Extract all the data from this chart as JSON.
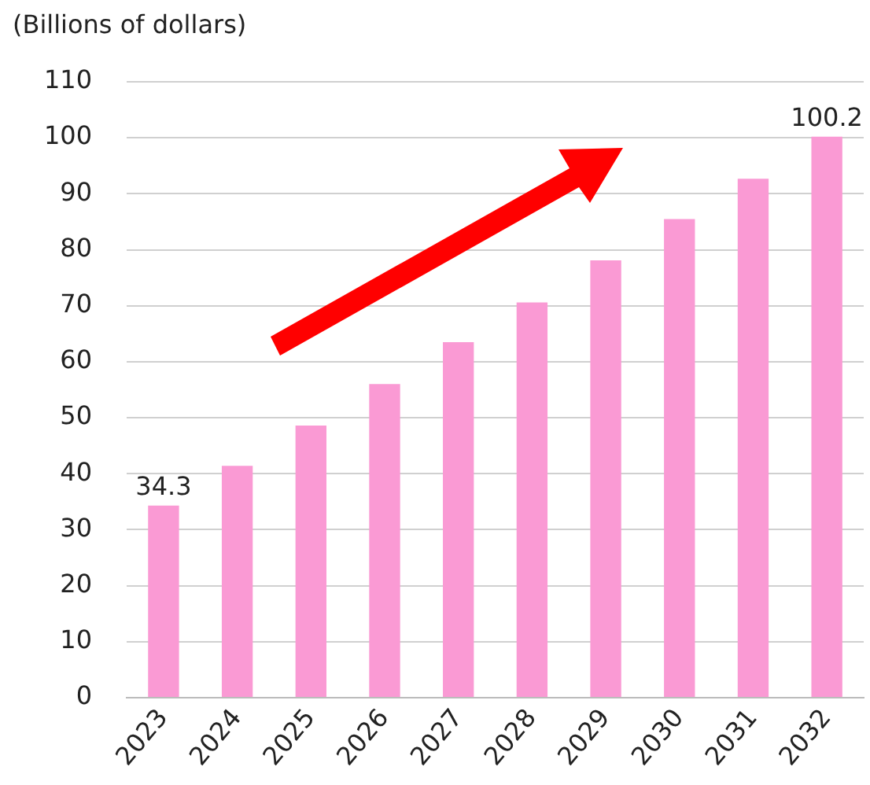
{
  "chart_data": {
    "type": "bar",
    "ylabel": "(Billions of dollars)",
    "categories": [
      "2023",
      "2024",
      "2025",
      "2026",
      "2027",
      "2028",
      "2029",
      "2030",
      "2031",
      "2032"
    ],
    "values": [
      34.3,
      41.4,
      48.6,
      56.0,
      63.5,
      70.6,
      78.1,
      85.5,
      92.7,
      100.2
    ],
    "value_labels": [
      "34.3",
      null,
      null,
      null,
      null,
      null,
      null,
      null,
      null,
      "100.2"
    ],
    "color": "#fa9ad4",
    "ylim": [
      0,
      110
    ],
    "yticks": [
      0,
      10,
      20,
      30,
      40,
      50,
      60,
      70,
      80,
      90,
      100,
      110
    ],
    "grid": "y",
    "legend": false
  }
}
